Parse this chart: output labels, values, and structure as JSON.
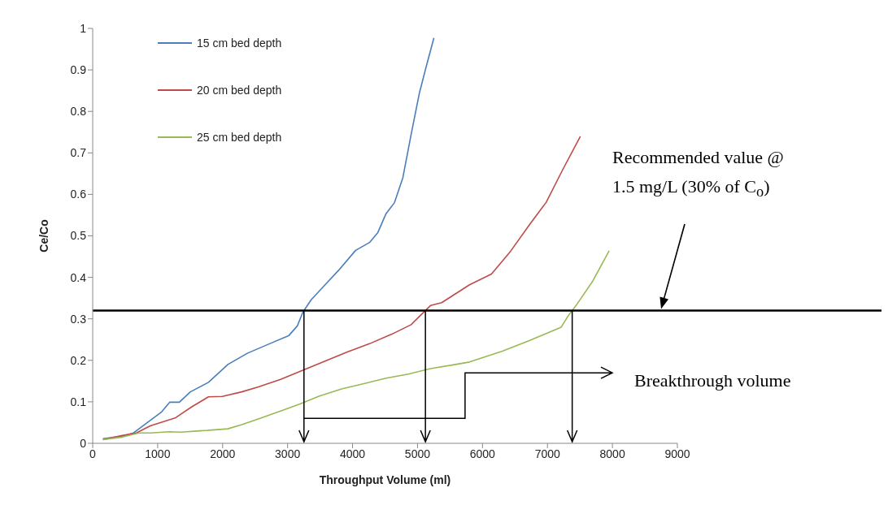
{
  "chart_data": {
    "type": "line",
    "xlabel": "Throughput Volume (ml)",
    "ylabel": "Ce/Co",
    "xlim": [
      0,
      9000
    ],
    "xticks": [
      0,
      1000,
      2000,
      3000,
      4000,
      5000,
      6000,
      7000,
      8000,
      9000
    ],
    "ylim": [
      0,
      1
    ],
    "yticks": [
      0,
      0.1,
      0.2,
      0.3,
      0.4,
      0.5,
      0.6,
      0.7,
      0.8,
      0.9,
      1
    ],
    "legend": "top left",
    "series": [
      {
        "name": "15 cm bed depth",
        "color": "#4a7ebb",
        "x": [
          158,
          457,
          628,
          842,
          1056,
          1184,
          1333,
          1504,
          1782,
          2081,
          2380,
          2722,
          3021,
          3150,
          3235,
          3363,
          3577,
          3791,
          4047,
          4261,
          4389,
          4517,
          4645,
          4774,
          4902,
          5030,
          5137,
          5252
        ],
        "values": [
          0.011,
          0.017,
          0.025,
          0.05,
          0.075,
          0.099,
          0.099,
          0.124,
          0.147,
          0.19,
          0.217,
          0.24,
          0.26,
          0.283,
          0.316,
          0.346,
          0.382,
          0.418,
          0.465,
          0.484,
          0.508,
          0.554,
          0.58,
          0.64,
          0.745,
          0.845,
          0.91,
          0.977
        ]
      },
      {
        "name": "20 cm bed depth",
        "color": "#be4b48",
        "x": [
          158,
          457,
          671,
          885,
          1269,
          1526,
          1782,
          1996,
          2295,
          2551,
          2893,
          3235,
          3577,
          3919,
          4261,
          4603,
          4902,
          5030,
          5200,
          5372,
          5801,
          6138,
          6433,
          6728,
          6981,
          7233,
          7507
        ],
        "values": [
          0.009,
          0.019,
          0.025,
          0.042,
          0.061,
          0.088,
          0.112,
          0.113,
          0.124,
          0.136,
          0.154,
          0.176,
          0.198,
          0.22,
          0.24,
          0.263,
          0.286,
          0.306,
          0.332,
          0.339,
          0.382,
          0.408,
          0.463,
          0.528,
          0.581,
          0.659,
          0.74
        ]
      },
      {
        "name": "25 cm bed depth",
        "color": "#98b954",
        "x": [
          158,
          457,
          714,
          885,
          1184,
          1355,
          1654,
          2081,
          2295,
          2594,
          2893,
          3192,
          3491,
          3833,
          4175,
          4517,
          4859,
          5201,
          5585,
          5801,
          6306,
          6728,
          7212,
          7318,
          7444,
          7697,
          7950
        ],
        "values": [
          0.009,
          0.015,
          0.025,
          0.025,
          0.028,
          0.027,
          0.03,
          0.035,
          0.045,
          0.061,
          0.078,
          0.095,
          0.114,
          0.131,
          0.144,
          0.157,
          0.167,
          0.18,
          0.19,
          0.196,
          0.222,
          0.248,
          0.28,
          0.307,
          0.333,
          0.391,
          0.464
        ]
      }
    ],
    "ref_lines": [
      {
        "axis": "y",
        "value": 0.32,
        "color": "#000000"
      }
    ],
    "annotations": [
      "Recommended value @ 1.5 mg/L (30% of C$_{o}$)",
      "Breakthrough volume"
    ]
  }
}
